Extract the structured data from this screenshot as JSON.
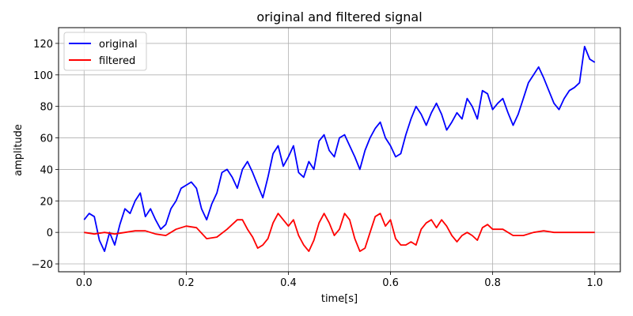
{
  "chart_data": {
    "type": "line",
    "title": "original and filtered signal",
    "xlabel": "time[s]",
    "ylabel": "amplitude",
    "xlim": [
      -0.05,
      1.05
    ],
    "ylim": [
      -25,
      130
    ],
    "xticks": [
      0.0,
      0.2,
      0.4,
      0.6,
      0.8,
      1.0
    ],
    "xtick_labels": [
      "0.0",
      "0.2",
      "0.4",
      "0.6",
      "0.8",
      "1.0"
    ],
    "yticks": [
      -20,
      0,
      20,
      40,
      60,
      80,
      100,
      120
    ],
    "ytick_labels": [
      "−20",
      "0",
      "20",
      "40",
      "60",
      "80",
      "100",
      "120"
    ],
    "grid": true,
    "legend_position": "top-left",
    "series": [
      {
        "name": "original",
        "color": "#0000ff",
        "x": [
          0.0,
          0.01,
          0.02,
          0.03,
          0.04,
          0.05,
          0.06,
          0.07,
          0.08,
          0.09,
          0.1,
          0.11,
          0.12,
          0.13,
          0.14,
          0.15,
          0.16,
          0.17,
          0.18,
          0.19,
          0.2,
          0.21,
          0.22,
          0.23,
          0.24,
          0.25,
          0.26,
          0.27,
          0.28,
          0.29,
          0.3,
          0.31,
          0.32,
          0.33,
          0.34,
          0.35,
          0.36,
          0.37,
          0.38,
          0.39,
          0.4,
          0.41,
          0.42,
          0.43,
          0.44,
          0.45,
          0.46,
          0.47,
          0.48,
          0.49,
          0.5,
          0.51,
          0.52,
          0.53,
          0.54,
          0.55,
          0.56,
          0.57,
          0.58,
          0.59,
          0.6,
          0.61,
          0.62,
          0.63,
          0.64,
          0.65,
          0.66,
          0.67,
          0.68,
          0.69,
          0.7,
          0.71,
          0.72,
          0.73,
          0.74,
          0.75,
          0.76,
          0.77,
          0.78,
          0.79,
          0.8,
          0.81,
          0.82,
          0.83,
          0.84,
          0.85,
          0.86,
          0.87,
          0.88,
          0.89,
          0.9,
          0.91,
          0.92,
          0.93,
          0.94,
          0.95,
          0.96,
          0.97,
          0.98,
          0.99,
          1.0
        ],
        "y": [
          8,
          12,
          10,
          -5,
          -12,
          0,
          -8,
          5,
          15,
          12,
          20,
          25,
          10,
          15,
          8,
          2,
          5,
          15,
          20,
          28,
          30,
          32,
          28,
          15,
          8,
          18,
          25,
          38,
          40,
          35,
          28,
          40,
          45,
          38,
          30,
          22,
          35,
          50,
          55,
          42,
          48,
          55,
          38,
          35,
          45,
          40,
          58,
          62,
          52,
          48,
          60,
          62,
          55,
          48,
          40,
          52,
          60,
          66,
          70,
          60,
          55,
          48,
          50,
          62,
          72,
          80,
          75,
          68,
          76,
          82,
          75,
          65,
          70,
          76,
          72,
          85,
          80,
          72,
          90,
          88,
          78,
          82,
          85,
          76,
          68,
          75,
          85,
          95,
          100,
          105,
          98,
          90,
          82,
          78,
          85,
          90,
          92,
          95,
          118,
          110,
          108
        ]
      },
      {
        "name": "filtered",
        "color": "#ff0000",
        "x": [
          0.0,
          0.02,
          0.04,
          0.06,
          0.08,
          0.1,
          0.12,
          0.14,
          0.16,
          0.18,
          0.2,
          0.22,
          0.24,
          0.26,
          0.28,
          0.3,
          0.31,
          0.32,
          0.33,
          0.34,
          0.35,
          0.36,
          0.37,
          0.38,
          0.39,
          0.4,
          0.41,
          0.42,
          0.43,
          0.44,
          0.45,
          0.46,
          0.47,
          0.48,
          0.49,
          0.5,
          0.51,
          0.52,
          0.53,
          0.54,
          0.55,
          0.56,
          0.57,
          0.58,
          0.59,
          0.6,
          0.61,
          0.62,
          0.63,
          0.64,
          0.65,
          0.66,
          0.67,
          0.68,
          0.69,
          0.7,
          0.71,
          0.72,
          0.73,
          0.74,
          0.75,
          0.76,
          0.77,
          0.78,
          0.79,
          0.8,
          0.82,
          0.84,
          0.86,
          0.88,
          0.9,
          0.92,
          0.94,
          0.96,
          0.98,
          1.0
        ],
        "y": [
          0,
          -1,
          0,
          -1,
          0,
          1,
          1,
          -1,
          -2,
          2,
          4,
          3,
          -4,
          -3,
          2,
          8,
          8,
          2,
          -3,
          -10,
          -8,
          -4,
          6,
          12,
          8,
          4,
          8,
          -2,
          -8,
          -12,
          -5,
          6,
          12,
          6,
          -2,
          2,
          12,
          8,
          -4,
          -12,
          -10,
          0,
          10,
          12,
          4,
          8,
          -4,
          -8,
          -8,
          -6,
          -8,
          2,
          6,
          8,
          3,
          8,
          4,
          -2,
          -6,
          -2,
          0,
          -2,
          -5,
          3,
          5,
          2,
          2,
          -2,
          -2,
          0,
          1,
          0,
          0,
          0,
          0,
          0
        ]
      }
    ]
  }
}
